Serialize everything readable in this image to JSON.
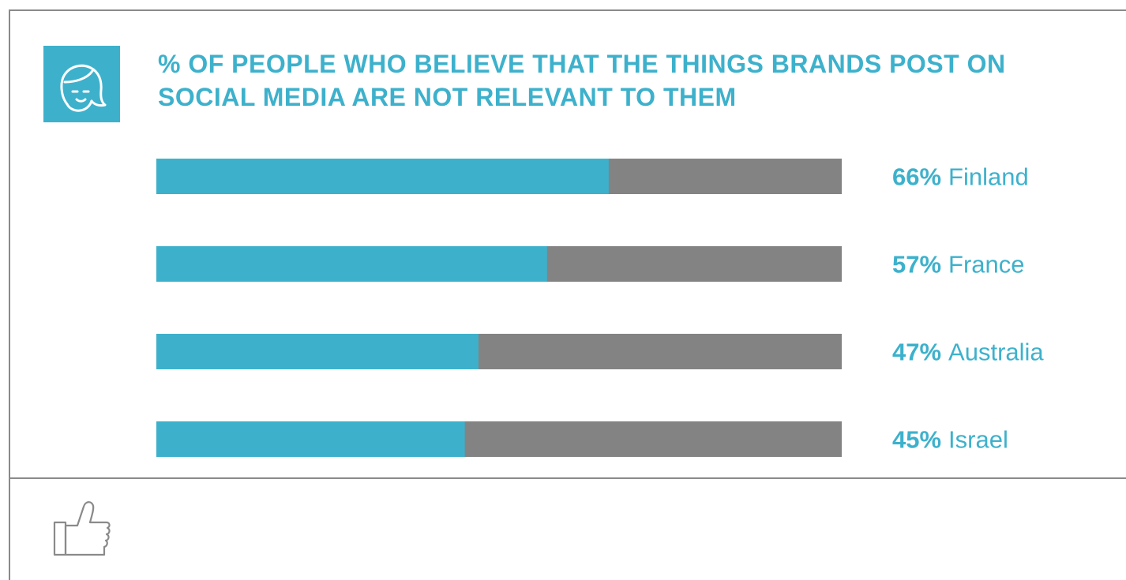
{
  "title_lines": [
    "% OF PEOPLE WHO BELIEVE THAT THE THINGS BRANDS POST ON",
    "SOCIAL MEDIA ARE NOT RELEVANT TO THEM"
  ],
  "colors": {
    "accent": "#3db1cc",
    "remainder": "#838383",
    "border": "#8a8a8a",
    "label": "#3db1cc"
  },
  "icons": {
    "header": "person-head-icon",
    "footer": "thumbs-up-icon"
  },
  "chart_data": {
    "type": "bar",
    "orientation": "horizontal",
    "stacked_remainder_to": 100,
    "categories": [
      "Finland",
      "France",
      "Australia",
      "Israel"
    ],
    "values": [
      66,
      57,
      47,
      45
    ],
    "value_labels": [
      "66%",
      "57%",
      "47%",
      "45%"
    ],
    "title": "% OF PEOPLE WHO BELIEVE THAT THE THINGS BRANDS POST ON SOCIAL MEDIA ARE NOT RELEVANT TO THEM",
    "xlim": [
      0,
      100
    ],
    "grid": false,
    "legend": "none"
  }
}
